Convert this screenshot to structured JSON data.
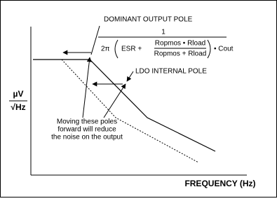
{
  "title": "DOMINANT OUTPUT POLE",
  "formula": {
    "numerator": "1",
    "two_pi": "2π",
    "esr": "ESR +",
    "inner_numerator": "Ropmos • Rload",
    "inner_denominator": "Ropmos + Rload",
    "cout": "• Cout"
  },
  "ldo_label": "LDO INTERNAL POLE",
  "y_axis": {
    "top": "µV",
    "bottom": "√Hz"
  },
  "note": [
    "Moving these poles",
    "forward will reduce",
    "the noise on the output"
  ],
  "x_axis": "FREQUENCY (Hz)"
}
